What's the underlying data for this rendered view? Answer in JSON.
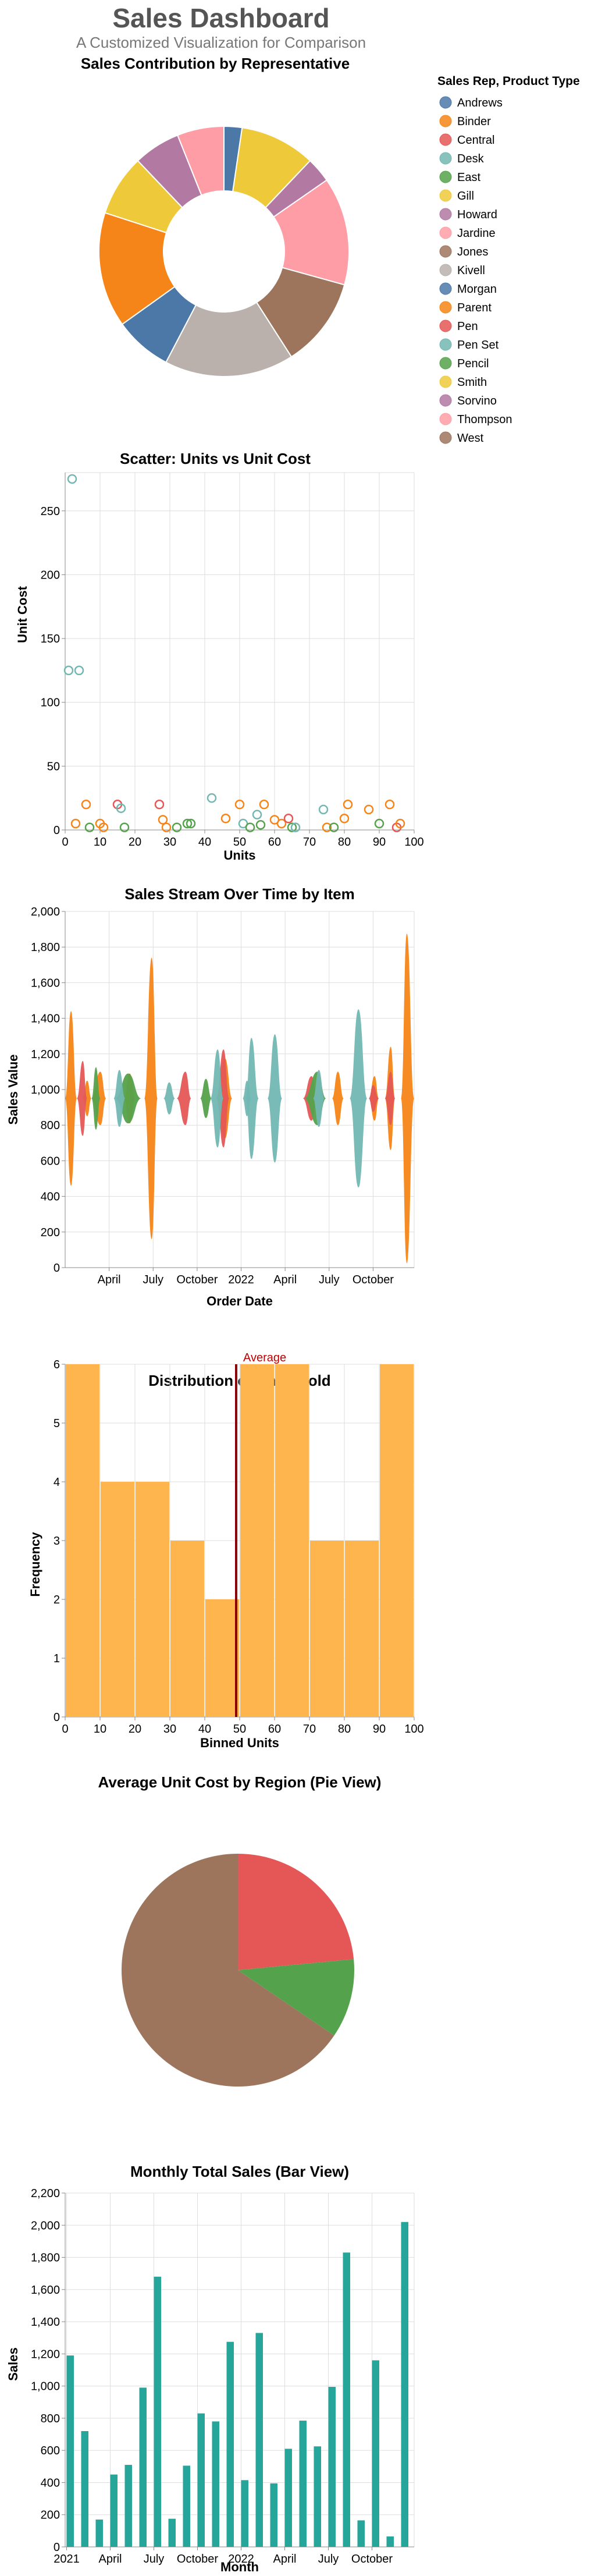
{
  "dashboard": {
    "title": "Sales Dashboard",
    "subtitle": "A Customized Visualization for Comparison"
  },
  "colors": {
    "Andrews": "#4c78a8",
    "Binder": "#f58518",
    "Central": "#e45756",
    "Desk": "#72b7b2",
    "East": "#54a24b",
    "Gill": "#eeca3b",
    "Howard": "#b279a2",
    "Jardine": "#ff9da6",
    "Jones": "#9d755d",
    "Kivell": "#bab0ac",
    "Morgan": "#4c78a8",
    "Parent": "#f58518",
    "Pen": "#e45756",
    "Pen Set": "#72b7b2",
    "Pencil": "#54a24b",
    "Smith": "#eeca3b",
    "Sorvino": "#b279a2",
    "Thompson": "#ff9da6",
    "West": "#9d755d",
    "hist_bar": "#ffb54d",
    "avg_rule": "#8b0000",
    "avg_text": "#c00000",
    "month_bar": "#26a69a"
  },
  "chart_data": [
    {
      "type": "pie",
      "variant": "donut",
      "title": "Sales Contribution by Representative",
      "legend_title": "Sales Rep, Product Type",
      "legend_placement": "right",
      "legend": [
        "Andrews",
        "Binder",
        "Central",
        "Desk",
        "East",
        "Gill",
        "Howard",
        "Jardine",
        "Jones",
        "Kivell",
        "Morgan",
        "Parent",
        "Pen",
        "Pen Set",
        "Pencil",
        "Smith",
        "Sorvino",
        "Thompson",
        "West"
      ],
      "slices": [
        {
          "name": "Andrews",
          "value": 2.5
        },
        {
          "name": "Gill",
          "value": 10.5
        },
        {
          "name": "Howard",
          "value": 3.5
        },
        {
          "name": "Jardine",
          "value": 15
        },
        {
          "name": "Jones",
          "value": 12.5
        },
        {
          "name": "Kivell",
          "value": 18
        },
        {
          "name": "Morgan",
          "value": 8
        },
        {
          "name": "Parent",
          "value": 16
        },
        {
          "name": "Smith",
          "value": 8.5
        },
        {
          "name": "Sorvino",
          "value": 6.5
        },
        {
          "name": "Thompson",
          "value": 6.5
        }
      ]
    },
    {
      "type": "scatter",
      "title": "Scatter: Units vs Unit Cost",
      "xlabel": "Units",
      "ylabel": "Unit Cost",
      "xlim": [
        0,
        100
      ],
      "ylim": [
        0,
        280
      ],
      "x_ticks": [
        0,
        10,
        20,
        30,
        40,
        50,
        60,
        70,
        80,
        90,
        100
      ],
      "y_ticks": [
        0,
        50,
        100,
        150,
        200,
        250
      ],
      "grid": true,
      "points": [
        {
          "x": 2,
          "y": 275,
          "c": "Desk"
        },
        {
          "x": 1,
          "y": 125,
          "c": "Desk"
        },
        {
          "x": 4,
          "y": 125,
          "c": "Desk"
        },
        {
          "x": 3,
          "y": 5,
          "c": "Binder"
        },
        {
          "x": 6,
          "y": 20,
          "c": "Binder"
        },
        {
          "x": 7,
          "y": 2,
          "c": "Pencil"
        },
        {
          "x": 10,
          "y": 5,
          "c": "Binder"
        },
        {
          "x": 11,
          "y": 2,
          "c": "Binder"
        },
        {
          "x": 15,
          "y": 20,
          "c": "Pen"
        },
        {
          "x": 16,
          "y": 17,
          "c": "Desk"
        },
        {
          "x": 17,
          "y": 2,
          "c": "Pencil"
        },
        {
          "x": 27,
          "y": 20,
          "c": "Pen"
        },
        {
          "x": 28,
          "y": 8,
          "c": "Binder"
        },
        {
          "x": 29,
          "y": 2,
          "c": "Binder"
        },
        {
          "x": 32,
          "y": 2,
          "c": "Pencil"
        },
        {
          "x": 35,
          "y": 5,
          "c": "Pencil"
        },
        {
          "x": 36,
          "y": 5,
          "c": "Pencil"
        },
        {
          "x": 42,
          "y": 25,
          "c": "Desk"
        },
        {
          "x": 46,
          "y": 9,
          "c": "Binder"
        },
        {
          "x": 50,
          "y": 20,
          "c": "Binder"
        },
        {
          "x": 51,
          "y": 5,
          "c": "Desk"
        },
        {
          "x": 53,
          "y": 2,
          "c": "Pencil"
        },
        {
          "x": 55,
          "y": 12,
          "c": "Desk"
        },
        {
          "x": 57,
          "y": 20,
          "c": "Binder"
        },
        {
          "x": 56,
          "y": 4,
          "c": "Pencil"
        },
        {
          "x": 60,
          "y": 8,
          "c": "Binder"
        },
        {
          "x": 62,
          "y": 5,
          "c": "Binder"
        },
        {
          "x": 64,
          "y": 9,
          "c": "Pen"
        },
        {
          "x": 65,
          "y": 2,
          "c": "Pencil"
        },
        {
          "x": 66,
          "y": 2,
          "c": "Pen Set"
        },
        {
          "x": 74,
          "y": 16,
          "c": "Desk"
        },
        {
          "x": 75,
          "y": 2,
          "c": "Binder"
        },
        {
          "x": 77,
          "y": 2,
          "c": "Pencil"
        },
        {
          "x": 80,
          "y": 9,
          "c": "Binder"
        },
        {
          "x": 81,
          "y": 20,
          "c": "Binder"
        },
        {
          "x": 87,
          "y": 16,
          "c": "Binder"
        },
        {
          "x": 90,
          "y": 5,
          "c": "Pencil"
        },
        {
          "x": 93,
          "y": 20,
          "c": "Binder"
        },
        {
          "x": 95,
          "y": 2,
          "c": "Pen"
        },
        {
          "x": 96,
          "y": 5,
          "c": "Binder"
        }
      ]
    },
    {
      "type": "area",
      "variant": "streamgraph",
      "title": "Sales Stream Over Time by Item",
      "xlabel": "Order Date",
      "ylabel": "Sales Value",
      "ylim": [
        0,
        2000
      ],
      "y_ticks": [
        0,
        200,
        400,
        600,
        800,
        1000,
        1200,
        1400,
        1600,
        1800,
        2000
      ],
      "x_ticks": [
        {
          "label": "April",
          "m": 3
        },
        {
          "label": "July",
          "m": 6
        },
        {
          "label": "October",
          "m": 9
        },
        {
          "label": "2022",
          "m": 12
        },
        {
          "label": "April",
          "m": 15
        },
        {
          "label": "July",
          "m": 18
        },
        {
          "label": "October",
          "m": 21
        }
      ],
      "center": 950,
      "x_range_months": [
        0,
        23.8
      ],
      "series": [
        {
          "name": "Binder",
          "points": [
            [
              0,
              0
            ],
            [
              0.4,
              980
            ],
            [
              0.8,
              0
            ],
            [
              1.2,
              0
            ],
            [
              1.5,
              200
            ],
            [
              1.8,
              0
            ],
            [
              2.4,
              300
            ],
            [
              2.8,
              0
            ],
            [
              4,
              0
            ],
            [
              4.4,
              280
            ],
            [
              4.8,
              0
            ],
            [
              5.4,
              0
            ],
            [
              5.9,
              1580
            ],
            [
              6.3,
              0
            ],
            [
              10.3,
              0
            ],
            [
              10.9,
              450
            ],
            [
              11.4,
              0
            ],
            [
              18.2,
              0
            ],
            [
              18.6,
              300
            ],
            [
              19,
              0
            ],
            [
              20.7,
              0
            ],
            [
              21.1,
              250
            ],
            [
              21.4,
              0
            ],
            [
              21.8,
              0
            ],
            [
              22.2,
              580
            ],
            [
              22.5,
              0
            ],
            [
              22.9,
              0
            ],
            [
              23.3,
              1850
            ],
            [
              23.8,
              0
            ]
          ]
        },
        {
          "name": "Pen",
          "points": [
            [
              0,
              0
            ],
            [
              0.8,
              0
            ],
            [
              1.2,
              420
            ],
            [
              1.5,
              0
            ],
            [
              7.6,
              0
            ],
            [
              8.2,
              300
            ],
            [
              8.6,
              0
            ],
            [
              10.3,
              0
            ],
            [
              10.8,
              550
            ],
            [
              11.2,
              0
            ],
            [
              16.2,
              0
            ],
            [
              16.8,
              250
            ],
            [
              17.2,
              0
            ],
            [
              20.7,
              0
            ],
            [
              21,
              150
            ],
            [
              21.4,
              0
            ],
            [
              21.8,
              0
            ],
            [
              22.2,
              300
            ],
            [
              22.5,
              0
            ]
          ]
        },
        {
          "name": "Pencil",
          "points": [
            [
              0,
              0
            ],
            [
              1.8,
              0
            ],
            [
              2.1,
              350
            ],
            [
              2.4,
              0
            ],
            [
              3.4,
              0
            ],
            [
              4.3,
              280
            ],
            [
              5.2,
              0
            ],
            [
              9.2,
              0
            ],
            [
              9.6,
              220
            ],
            [
              10,
              0
            ],
            [
              16.3,
              0
            ],
            [
              17.2,
              300
            ],
            [
              17.8,
              0
            ]
          ]
        },
        {
          "name": "Desk",
          "points": [
            [
              0,
              0
            ],
            [
              9.9,
              0
            ],
            [
              10.4,
              550
            ],
            [
              10.8,
              0
            ],
            [
              12.3,
              0
            ],
            [
              12.7,
              680
            ],
            [
              13.2,
              0
            ],
            [
              13.8,
              0
            ],
            [
              14.3,
              720
            ],
            [
              14.8,
              0
            ],
            [
              19.4,
              0
            ],
            [
              20,
              1000
            ],
            [
              20.6,
              0
            ]
          ]
        },
        {
          "name": "Pen Set",
          "points": [
            [
              0,
              0
            ],
            [
              3.3,
              0
            ],
            [
              3.7,
              320
            ],
            [
              4.1,
              0
            ],
            [
              6.7,
              0
            ],
            [
              7.1,
              180
            ],
            [
              7.5,
              0
            ],
            [
              12.1,
              0
            ],
            [
              12.4,
              200
            ],
            [
              12.7,
              0
            ],
            [
              16.9,
              0
            ],
            [
              17.3,
              320
            ],
            [
              17.7,
              0
            ]
          ]
        }
      ]
    },
    {
      "type": "bar",
      "variant": "histogram",
      "title": "Distribution of Units Sold",
      "xlabel": "Binned Units",
      "ylabel": "Frequency",
      "xlim": [
        0,
        100
      ],
      "ylim": [
        0,
        6
      ],
      "x_ticks": [
        0,
        10,
        20,
        30,
        40,
        50,
        60,
        70,
        80,
        90,
        100
      ],
      "y_ticks": [
        0,
        1,
        2,
        3,
        4,
        5,
        6
      ],
      "bins": [
        [
          0,
          10
        ],
        [
          10,
          20
        ],
        [
          20,
          30
        ],
        [
          30,
          40
        ],
        [
          40,
          50
        ],
        [
          50,
          60
        ],
        [
          60,
          70
        ],
        [
          70,
          80
        ],
        [
          80,
          90
        ],
        [
          90,
          100
        ]
      ],
      "values": [
        6,
        4,
        4,
        3,
        2,
        6,
        6,
        3,
        3,
        6
      ],
      "annotation": {
        "text": "Average",
        "x": 49
      }
    },
    {
      "type": "pie",
      "title": "Average Unit Cost by Region (Pie View)",
      "slices": [
        {
          "name": "Central",
          "value": 23.5
        },
        {
          "name": "East",
          "value": 11
        },
        {
          "name": "West",
          "value": 65.5
        }
      ]
    },
    {
      "type": "bar",
      "title": "Monthly Total Sales (Bar View)",
      "xlabel": "Month",
      "ylabel": "Sales",
      "ylim": [
        0,
        2200
      ],
      "y_ticks": [
        0,
        200,
        400,
        600,
        800,
        1000,
        1200,
        1400,
        1600,
        1800,
        2000,
        2200
      ],
      "x_ticks": [
        {
          "label": "2021",
          "m": 0
        },
        {
          "label": "April",
          "m": 3
        },
        {
          "label": "July",
          "m": 6
        },
        {
          "label": "October",
          "m": 9
        },
        {
          "label": "2022",
          "m": 12
        },
        {
          "label": "April",
          "m": 15
        },
        {
          "label": "July",
          "m": 18
        },
        {
          "label": "October",
          "m": 21
        }
      ],
      "values": [
        1190,
        720,
        170,
        450,
        510,
        990,
        1680,
        175,
        505,
        830,
        780,
        1275,
        415,
        1330,
        395,
        610,
        785,
        625,
        995,
        1830,
        165,
        1160,
        65,
        2020
      ]
    }
  ]
}
